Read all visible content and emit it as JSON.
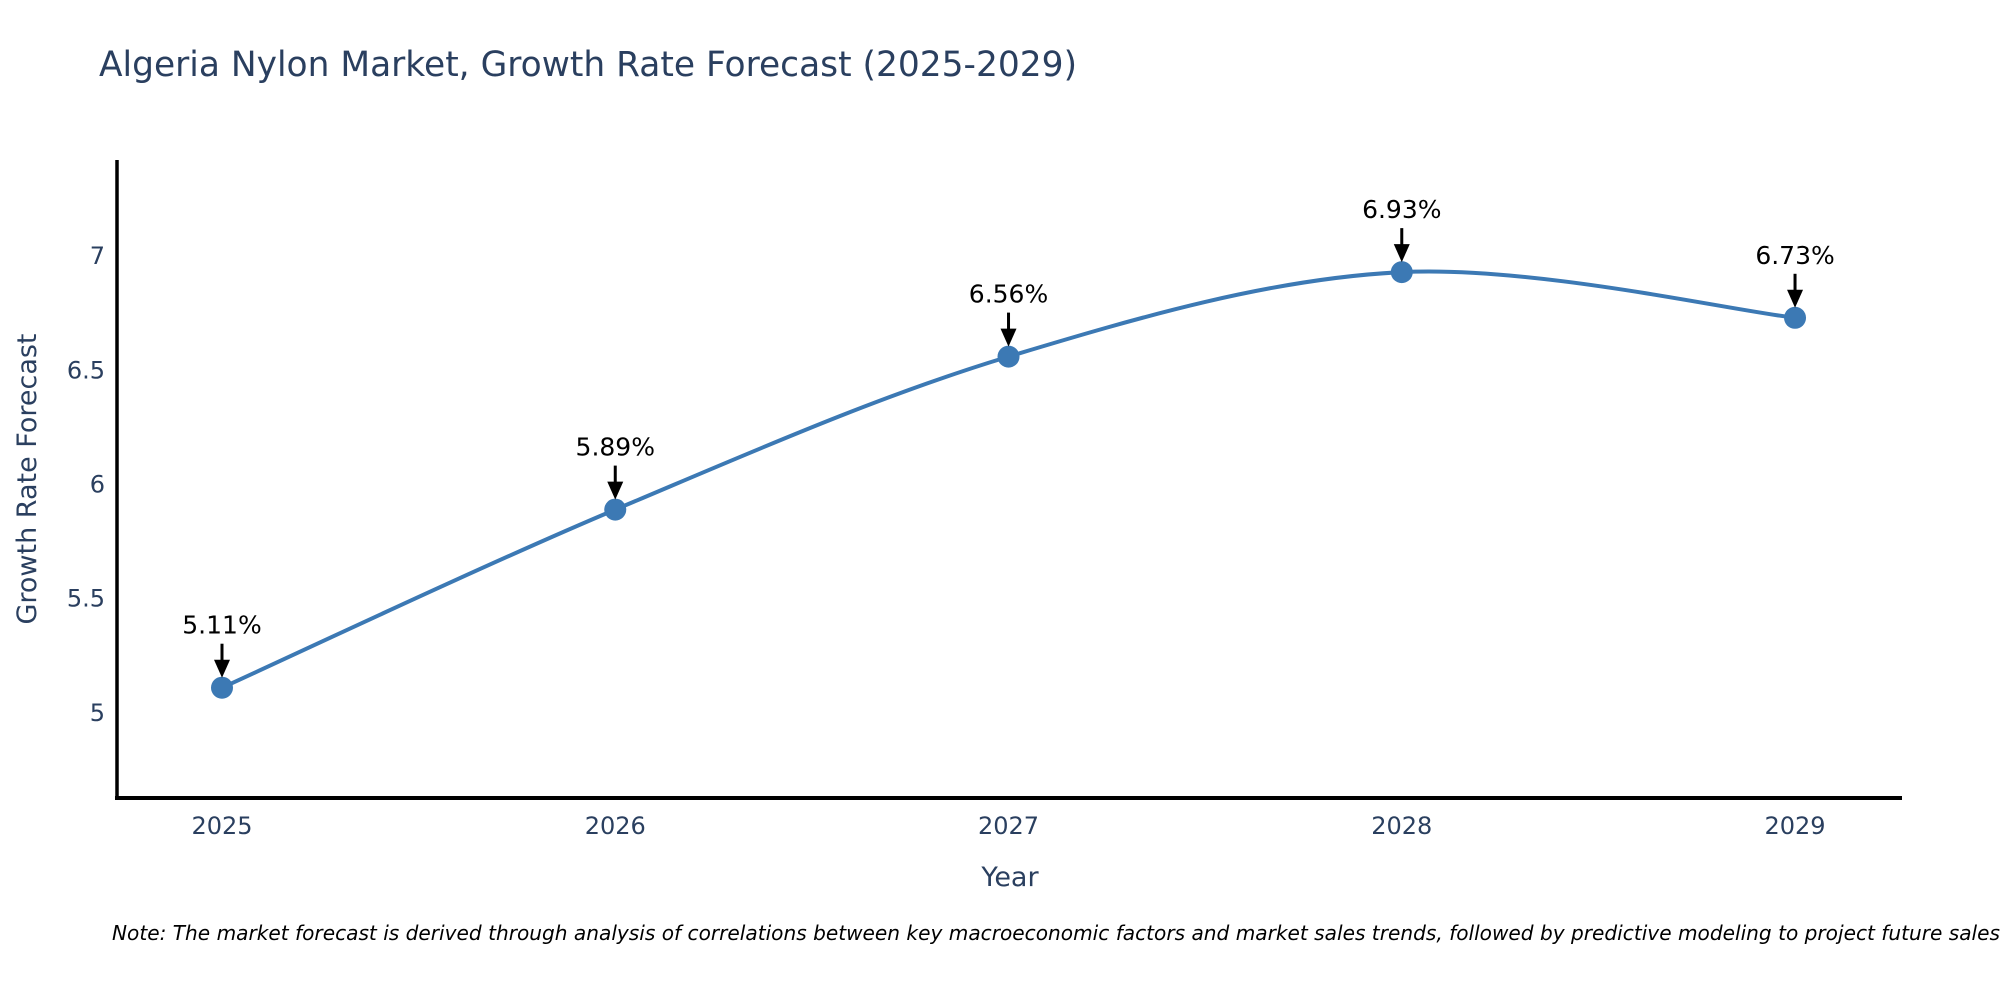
{
  "page": {
    "background": "#ffffff"
  },
  "note": {
    "text": "Note: The market forecast is derived through analysis of correlations between key macroeconomic factors and market sales trends, followed by predictive modeling to project future sales"
  },
  "chart_data": {
    "type": "line",
    "title": "Algeria Nylon Market, Growth Rate Forecast (2025-2029)",
    "xlabel": "Year",
    "ylabel": "Growth Rate Forecast",
    "x": [
      2025,
      2026,
      2027,
      2028,
      2029
    ],
    "series": [
      {
        "name": "Growth Rate Forecast",
        "values": [
          5.11,
          5.89,
          6.56,
          6.93,
          6.73
        ]
      }
    ],
    "point_labels": [
      "5.11%",
      "5.89%",
      "6.56%",
      "6.93%",
      "6.73%"
    ],
    "x_tick_labels": [
      "2025",
      "2026",
      "2027",
      "2028",
      "2029"
    ],
    "y_tick_values": [
      5,
      5.5,
      6,
      6.5,
      7
    ],
    "y_tick_labels": [
      "5",
      "5.5",
      "6",
      "6.5",
      "7"
    ],
    "xlim": [
      2024.733,
      2029.272
    ],
    "ylim": [
      4.627,
      7.421
    ],
    "grid": false,
    "legend": "none",
    "line_shape": "spline",
    "annotation_arrows": true,
    "colors": {
      "line": "#3c79b4",
      "marker": "#3c79b4",
      "annotation_text": "#000000",
      "arrow": "#000000",
      "axis_line": "#000000",
      "tick_text": "#2a3f5f",
      "title_text": "#2a3f5f",
      "note_text": "#000000",
      "background": "#ffffff"
    }
  }
}
